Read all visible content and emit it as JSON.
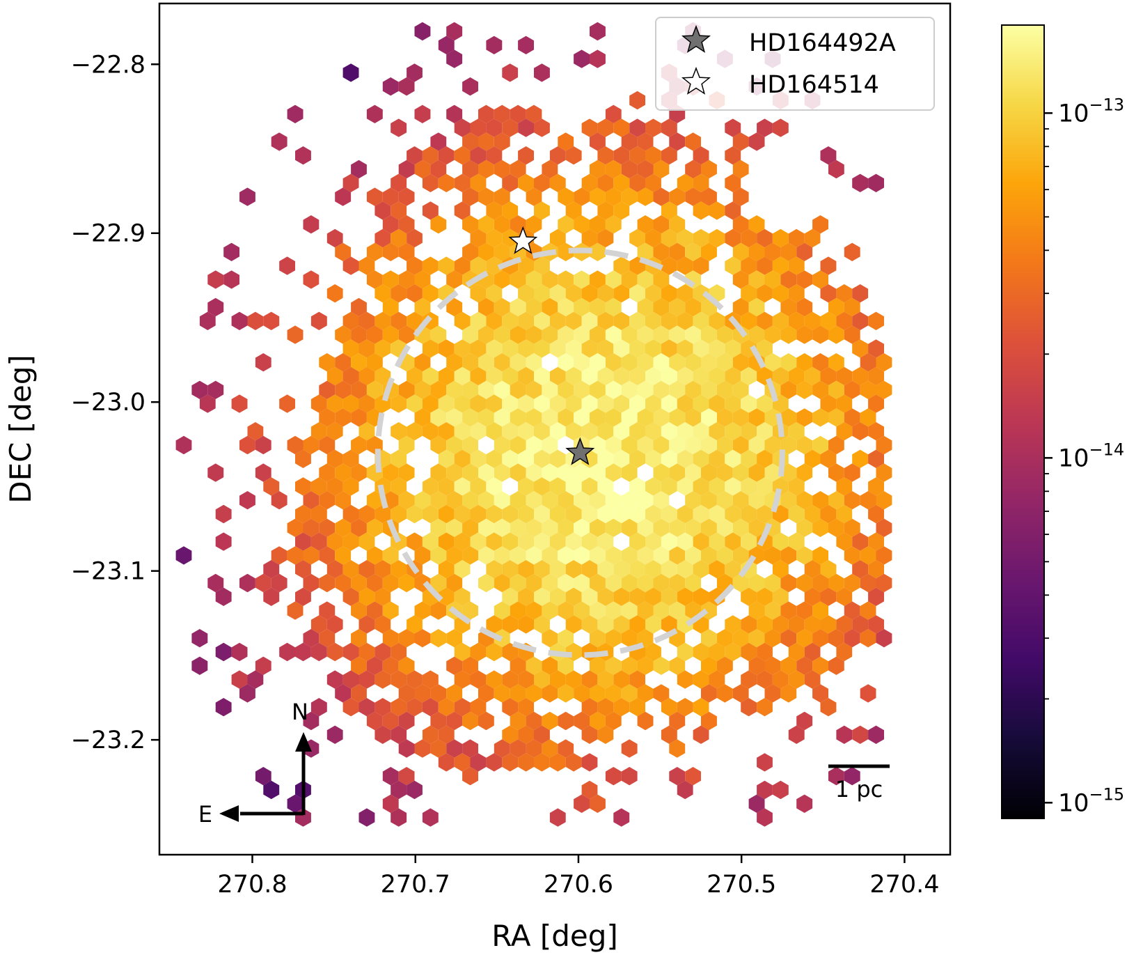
{
  "chart_data": {
    "type": "hexbin",
    "title": "",
    "xlabel": "RA [deg]",
    "ylabel": "DEC [deg]",
    "xlim": [
      270.857,
      270.372
    ],
    "ylim": [
      -23.268,
      -22.764
    ],
    "x_inverted": true,
    "x_ticks": [
      270.8,
      270.7,
      270.6,
      270.5,
      270.4
    ],
    "x_tick_labels": [
      "270.8",
      "270.7",
      "270.6",
      "270.5",
      "270.4"
    ],
    "y_ticks": [
      -22.8,
      -22.9,
      -23.0,
      -23.1,
      -23.2
    ],
    "y_tick_labels": [
      "−22.8",
      "−22.9",
      "−23.0",
      "−23.1",
      "−23.2"
    ],
    "colormap": "inferno",
    "color_scale": "log",
    "colorbar_range": [
      9e-16,
      1.8e-13
    ],
    "colorbar_ticks": [
      1e-15,
      1e-14,
      1e-13
    ],
    "colorbar_tick_labels": [
      {
        "base": "10",
        "exp": "−15"
      },
      {
        "base": "10",
        "exp": "−14"
      },
      {
        "base": "10",
        "exp": "−13"
      }
    ],
    "density_model": {
      "center_ra": 270.585,
      "center_dec": -23.03,
      "peak_value": 1.5e-13,
      "halo_extent_deg": 0.2
    },
    "markers": [
      {
        "name": "HD164492A",
        "ra": 270.599,
        "dec": -23.03,
        "style": "filled-star",
        "color": "#707070"
      },
      {
        "name": "HD164514",
        "ra": 270.634,
        "dec": -22.905,
        "style": "open-star",
        "color": "#ffffff"
      }
    ],
    "circle": {
      "center_ra": 270.599,
      "center_dec": -23.03,
      "radius_deg": 0.124,
      "style": "dashed",
      "color": "#d3d3d3"
    },
    "legend": {
      "location": "top-right",
      "entries": [
        "HD164492A",
        "HD164514"
      ]
    },
    "annotations": {
      "scale_bar_label": "1 pc",
      "north_label": "N",
      "east_label": "E"
    }
  }
}
